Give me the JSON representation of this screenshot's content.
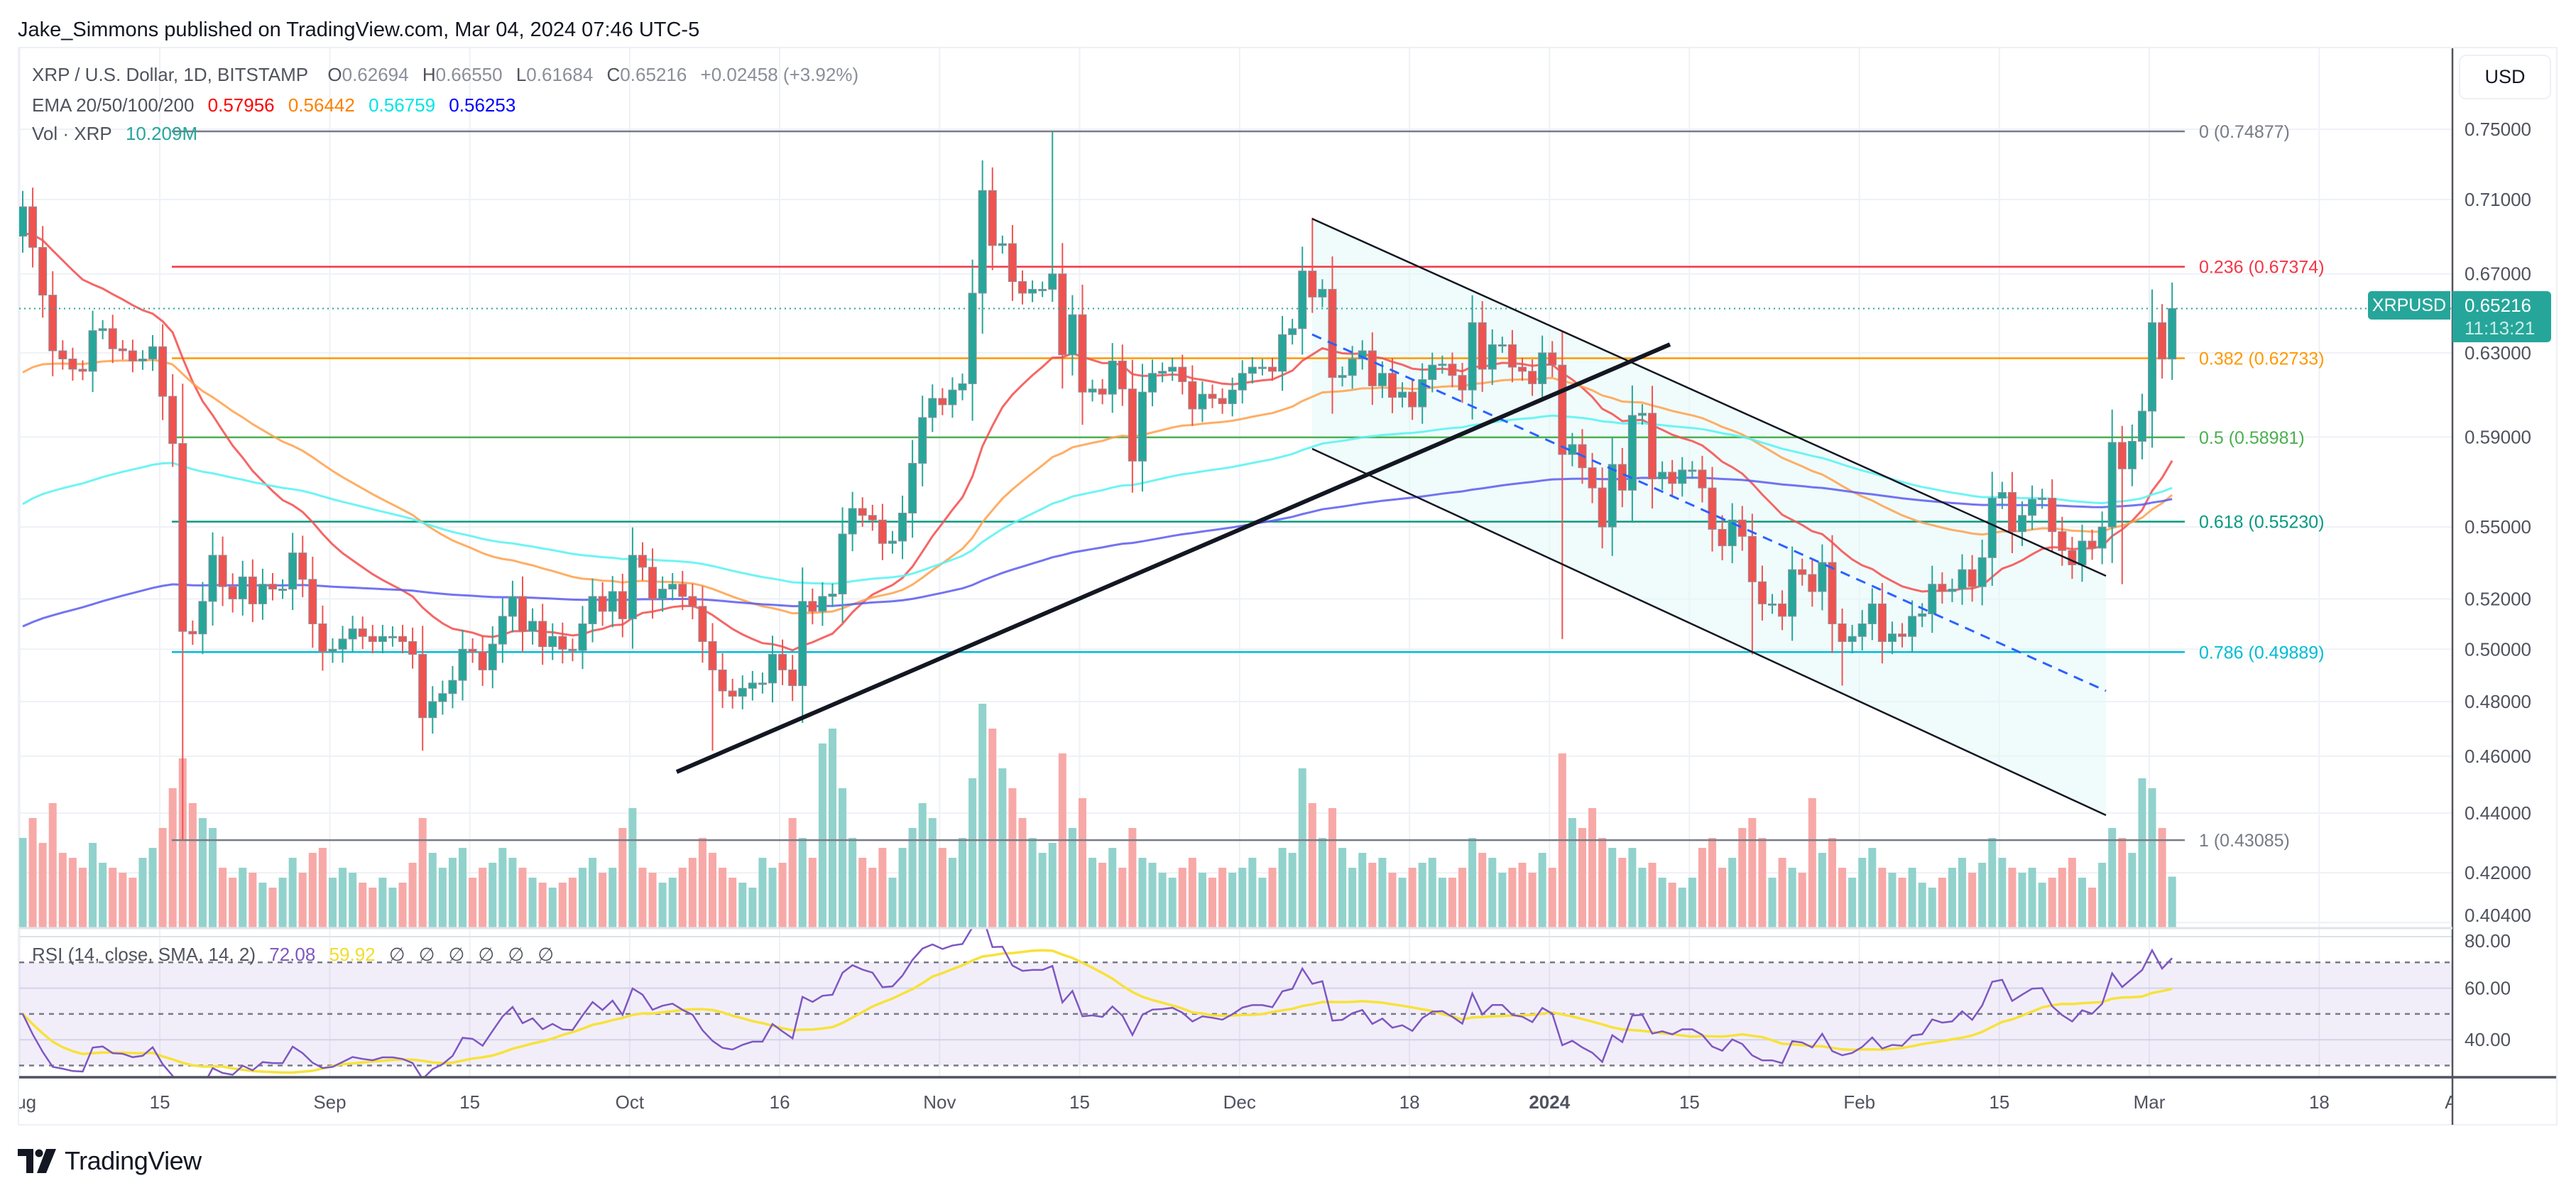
{
  "header": {
    "published": "Jake_Simmons published on TradingView.com, Mar 04, 2024 07:46 UTC-5"
  },
  "legend": {
    "symbol": "XRP / U.S. Dollar, 1D, BITSTAMP",
    "ohlc": [
      {
        "k": "O",
        "v": "0.62694"
      },
      {
        "k": "H",
        "v": "0.66550"
      },
      {
        "k": "L",
        "v": "0.61684"
      },
      {
        "k": "C",
        "v": "0.65216"
      }
    ],
    "change": "+0.02458 (+3.92%)",
    "ema_label": "EMA 20/50/100/200",
    "ema_values": [
      {
        "v": "0.57956",
        "color": "#ff0000"
      },
      {
        "v": "0.56442",
        "color": "#ff8000"
      },
      {
        "v": "0.56759",
        "color": "#00e5e5"
      },
      {
        "v": "0.56253",
        "color": "#0000ff"
      }
    ],
    "vol_label": "Vol · XRP",
    "vol_value": "10.209M",
    "vol_color": "#26a69a"
  },
  "rsi_legend": {
    "label": "RSI (14, close, SMA, 14, 2)",
    "rsi_value": "72.08",
    "sma_value": "59.92",
    "empty": [
      "∅",
      "∅",
      "∅",
      "∅",
      "∅",
      "∅"
    ]
  },
  "price_axis": {
    "currency": "USD",
    "ticks": [
      {
        "v": 0.75,
        "label": "0.75000"
      },
      {
        "v": 0.71,
        "label": "0.71000"
      },
      {
        "v": 0.67,
        "label": "0.67000"
      },
      {
        "v": 0.63,
        "label": "0.63000"
      },
      {
        "v": 0.59,
        "label": "0.59000"
      },
      {
        "v": 0.55,
        "label": "0.55000"
      },
      {
        "v": 0.52,
        "label": "0.52000"
      },
      {
        "v": 0.5,
        "label": "0.50000"
      },
      {
        "v": 0.48,
        "label": "0.48000"
      },
      {
        "v": 0.46,
        "label": "0.46000"
      },
      {
        "v": 0.44,
        "label": "0.44000"
      },
      {
        "v": 0.42,
        "label": "0.42000"
      },
      {
        "v": 0.404,
        "label": "0.40400"
      }
    ]
  },
  "current_price": {
    "symbol": "XRPUSD",
    "price": "0.65216",
    "countdown": "11:13:21",
    "color": "#26a69a"
  },
  "rsi_axis": {
    "ticks": [
      {
        "v": 80,
        "label": "80.00"
      },
      {
        "v": 60,
        "label": "60.00"
      },
      {
        "v": 40,
        "label": "40.00"
      }
    ]
  },
  "time_axis": [
    {
      "label": "Aug",
      "day": 0
    },
    {
      "label": "15",
      "day": 14
    },
    {
      "label": "Sep",
      "day": 31
    },
    {
      "label": "15",
      "day": 45
    },
    {
      "label": "Oct",
      "day": 61
    },
    {
      "label": "16",
      "day": 76
    },
    {
      "label": "Nov",
      "day": 92
    },
    {
      "label": "15",
      "day": 106
    },
    {
      "label": "Dec",
      "day": 122
    },
    {
      "label": "18",
      "day": 139
    },
    {
      "label": "2024",
      "day": 153
    },
    {
      "label": "15",
      "day": 167
    },
    {
      "label": "Feb",
      "day": 184
    },
    {
      "label": "15",
      "day": 198
    },
    {
      "label": "Mar",
      "day": 213
    },
    {
      "label": "18",
      "day": 230
    },
    {
      "label": "Apr",
      "day": 244
    }
  ],
  "footer": {
    "brand": "TradingView"
  },
  "chart_data": {
    "type": "candlestick",
    "title": "XRP / U.S. Dollar, 1D, BITSTAMP",
    "scale": "log",
    "ylim": [
      0.404,
      0.76
    ],
    "first_open": 0.69,
    "closes": [
      0.706,
      0.684,
      0.659,
      0.631,
      0.627,
      0.622,
      0.621,
      0.641,
      0.642,
      0.632,
      0.631,
      0.626,
      0.627,
      0.633,
      0.609,
      0.587,
      0.507,
      0.506,
      0.519,
      0.538,
      0.525,
      0.52,
      0.529,
      0.518,
      0.526,
      0.524,
      0.524,
      0.539,
      0.528,
      0.51,
      0.499,
      0.5,
      0.504,
      0.508,
      0.505,
      0.503,
      0.505,
      0.505,
      0.503,
      0.498,
      0.474,
      0.48,
      0.483,
      0.488,
      0.5,
      0.499,
      0.492,
      0.502,
      0.513,
      0.521,
      0.507,
      0.511,
      0.501,
      0.505,
      0.5,
      0.4995,
      0.51,
      0.521,
      0.515,
      0.523,
      0.512,
      0.538,
      0.533,
      0.52,
      0.524,
      0.526,
      0.521,
      0.517,
      0.503,
      0.492,
      0.484,
      0.482,
      0.485,
      0.487,
      0.487,
      0.498,
      0.492,
      0.486,
      0.519,
      0.515,
      0.521,
      0.522,
      0.547,
      0.558,
      0.555,
      0.553,
      0.543,
      0.544,
      0.556,
      0.578,
      0.599,
      0.608,
      0.605,
      0.612,
      0.615,
      0.66,
      0.715,
      0.685,
      0.686,
      0.666,
      0.66,
      0.662,
      0.662,
      0.67,
      0.629,
      0.649,
      0.611,
      0.6125,
      0.61,
      0.626,
      0.6125,
      0.579,
      0.611,
      0.62,
      0.621,
      0.623,
      0.616,
      0.603,
      0.61,
      0.608,
      0.6055,
      0.612,
      0.62,
      0.623,
      0.623,
      0.621,
      0.639,
      0.642,
      0.6715,
      0.658,
      0.662,
      0.618,
      0.619,
      0.627,
      0.631,
      0.614,
      0.62,
      0.6085,
      0.611,
      0.604,
      0.617,
      0.624,
      0.6245,
      0.619,
      0.612,
      0.645,
      0.622,
      0.634,
      0.634,
      0.623,
      0.621,
      0.615,
      0.63,
      0.624,
      0.582,
      0.5865,
      0.576,
      0.567,
      0.55,
      0.5775,
      0.566,
      0.6,
      0.601,
      0.571,
      0.574,
      0.569,
      0.575,
      0.575,
      0.567,
      0.549,
      0.542,
      0.553,
      0.546,
      0.527,
      0.518,
      0.518,
      0.513,
      0.532,
      0.53,
      0.523,
      0.535,
      0.51,
      0.503,
      0.505,
      0.51,
      0.518,
      0.503,
      0.506,
      0.505,
      0.513,
      0.514,
      0.526,
      0.523,
      0.524,
      0.532,
      0.525,
      0.537,
      0.5625,
      0.565,
      0.548,
      0.555,
      0.562,
      0.5625,
      0.548,
      0.54,
      0.534,
      0.544,
      0.541,
      0.55,
      0.5875,
      0.5755,
      0.588,
      0.602,
      0.645,
      0.62694,
      0.65216
    ],
    "wick_overrides": [
      {
        "i": 16,
        "low": 0.431
      },
      {
        "i": 40,
        "low": 0.462
      },
      {
        "i": 69,
        "low": 0.462
      },
      {
        "i": 96,
        "high": 0.732
      },
      {
        "i": 103,
        "high": 0.7488
      },
      {
        "i": 129,
        "high": 0.7
      },
      {
        "i": 154,
        "low": 0.504
      },
      {
        "i": 173,
        "low": 0.498
      },
      {
        "i": 182,
        "low": 0.486
      },
      {
        "i": 210,
        "low": 0.526
      },
      {
        "i": 215,
        "high": 0.6655,
        "low": 0.61684
      }
    ],
    "volume_millions": [
      18,
      22,
      17,
      25,
      15,
      14,
      12,
      17,
      13,
      12,
      11,
      10,
      14,
      16,
      20,
      28,
      34,
      25,
      22,
      20,
      12,
      10,
      12,
      11,
      9,
      8,
      10,
      14,
      11,
      15,
      16,
      10,
      12,
      11,
      9,
      8,
      10,
      8,
      9,
      13,
      22,
      15,
      12,
      14,
      16,
      10,
      12,
      13,
      16,
      14,
      12,
      10,
      9,
      8,
      9,
      10,
      12,
      14,
      11,
      12,
      20,
      24,
      12,
      11,
      9,
      10,
      12,
      14,
      18,
      15,
      12,
      10,
      9,
      8,
      14,
      12,
      13,
      22,
      18,
      14,
      37,
      40,
      28,
      18,
      14,
      12,
      16,
      10,
      16,
      20,
      25,
      22,
      16,
      14,
      18,
      30,
      45,
      40,
      32,
      28,
      22,
      18,
      15,
      17,
      35,
      20,
      26,
      14,
      13,
      16,
      12,
      20,
      14,
      13,
      11,
      10,
      12,
      14,
      11,
      10,
      12,
      11,
      12,
      14,
      10,
      12,
      16,
      15,
      32,
      25,
      18,
      24,
      16,
      12,
      15,
      13,
      14,
      11,
      10,
      12,
      13,
      14,
      10,
      10,
      12,
      18,
      15,
      14,
      11,
      12,
      13,
      11,
      15,
      12,
      35,
      22,
      20,
      24,
      18,
      16,
      14,
      16,
      12,
      13,
      10,
      9,
      8,
      10,
      16,
      18,
      12,
      14,
      20,
      22,
      18,
      10,
      14,
      12,
      11,
      26,
      15,
      18,
      12,
      10,
      14,
      16,
      12,
      11,
      10,
      12,
      9,
      8,
      10,
      12,
      14,
      11,
      13,
      18,
      14,
      12,
      11,
      12,
      9,
      10,
      12,
      14,
      10,
      8,
      13,
      20,
      18,
      15,
      30,
      28,
      20,
      10.209
    ],
    "ema": [
      {
        "period": 20,
        "seed": 0.69,
        "color": "#f44b4b"
      },
      {
        "period": 50,
        "seed": 0.617,
        "color": "#ffa04a"
      },
      {
        "period": 100,
        "seed": 0.557,
        "color": "#55f2f2"
      },
      {
        "period": 200,
        "seed": 0.507,
        "color": "#5a5af0"
      }
    ],
    "fib_levels": [
      {
        "ratio": 0,
        "price": 0.74877,
        "label": "0 (0.74877)",
        "color": "#787b86"
      },
      {
        "ratio": 0.236,
        "price": 0.67374,
        "label": "0.236 (0.67374)",
        "color": "#f23645"
      },
      {
        "ratio": 0.382,
        "price": 0.62733,
        "label": "0.382 (0.62733)",
        "color": "#ff9800"
      },
      {
        "ratio": 0.5,
        "price": 0.58981,
        "label": "0.5 (0.58981)",
        "color": "#4caf50"
      },
      {
        "ratio": 0.618,
        "price": 0.5523,
        "label": "0.618 (0.55230)",
        "color": "#089981"
      },
      {
        "ratio": 0.786,
        "price": 0.49889,
        "label": "0.786 (0.49889)",
        "color": "#00bcd4"
      },
      {
        "ratio": 1,
        "price": 0.43085,
        "label": "1 (0.43085)",
        "color": "#787b86"
      }
    ],
    "rsi": {
      "length": 14,
      "sma_length": 14,
      "upper": 70,
      "middle": 50,
      "lower": 30,
      "line_color": "#7e57c2",
      "sma_color": "#f7e23a"
    },
    "colors": {
      "up": "#26a69a",
      "down": "#ef5350",
      "vol_up": "#92d2cc",
      "vol_down": "#f7a9a7"
    }
  }
}
